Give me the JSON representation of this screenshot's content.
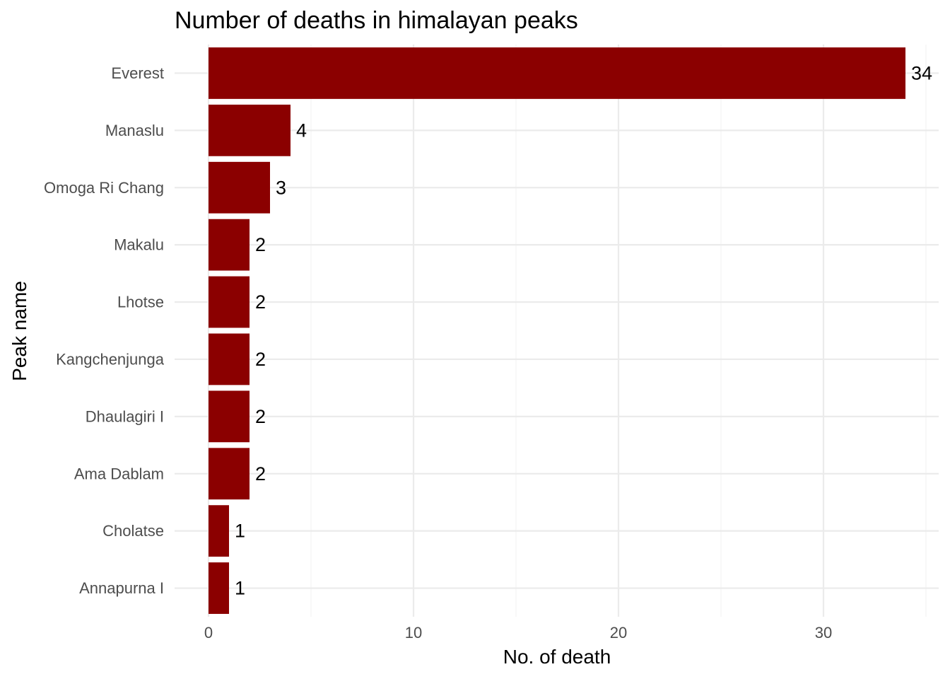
{
  "chart_data": {
    "type": "bar",
    "orientation": "horizontal",
    "title": "Number of deaths in himalayan peaks",
    "xlabel": "No. of death",
    "ylabel": "Peak name",
    "categories": [
      "Everest",
      "Manaslu",
      "Omoga Ri Chang",
      "Makalu",
      "Lhotse",
      "Kangchenjunga",
      "Dhaulagiri I",
      "Ama Dablam",
      "Cholatse",
      "Annapurna I"
    ],
    "values": [
      34,
      4,
      3,
      2,
      2,
      2,
      2,
      2,
      1,
      1
    ],
    "data_labels": [
      "34",
      "4",
      "3",
      "2",
      "2",
      "2",
      "2",
      "2",
      "1",
      "1"
    ],
    "x_ticks": [
      0,
      10,
      20,
      30
    ],
    "x_tick_labels": [
      "0",
      "10",
      "20",
      "30"
    ],
    "xlim": [
      0,
      35.7
    ],
    "grid": true,
    "legend": "none",
    "colors": {
      "bar": "#8b0000",
      "grid_major": "#ebebeb",
      "grid_minor": "#f2f2f2"
    }
  }
}
